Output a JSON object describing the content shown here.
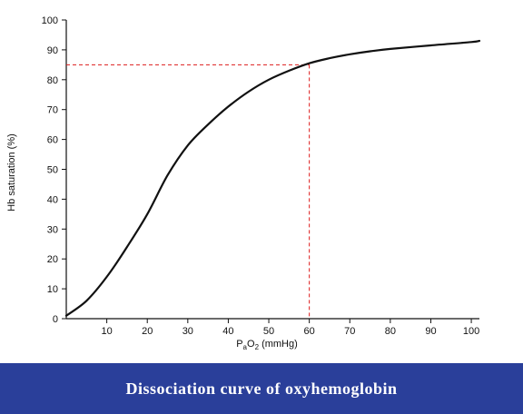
{
  "caption": "Dissociation curve of oxyhemoglobin",
  "colors": {
    "curve": "#111111",
    "reference_lines": "#dd1a1a",
    "caption_background": "#2a3f9a",
    "caption_text": "#ffffff"
  },
  "chart_data": {
    "type": "line",
    "title": "",
    "xlabel_main": "P",
    "xlabel_sub_a": "a",
    "xlabel_mid": "O",
    "xlabel_sub_2": "2",
    "xlabel_unit": " (mmHg)",
    "ylabel": "Hb saturation (%)",
    "xlim": [
      0,
      102
    ],
    "ylim": [
      0,
      100
    ],
    "x_ticks": [
      10,
      20,
      30,
      40,
      50,
      60,
      70,
      80,
      90,
      100
    ],
    "y_ticks": [
      0,
      10,
      20,
      30,
      40,
      50,
      60,
      70,
      80,
      90,
      100
    ],
    "grid": false,
    "series": [
      {
        "x": [
          0,
          5,
          10,
          15,
          20,
          25,
          30,
          35,
          40,
          45,
          50,
          55,
          60,
          65,
          70,
          75,
          80,
          90,
          100,
          102
        ],
        "values": [
          1,
          6,
          14,
          24,
          35,
          48,
          58,
          65,
          71,
          76,
          80,
          83,
          85.5,
          87.2,
          88.5,
          89.5,
          90.3,
          91.5,
          92.6,
          93
        ]
      }
    ],
    "reference_point": {
      "x": 60,
      "y": 85
    }
  }
}
